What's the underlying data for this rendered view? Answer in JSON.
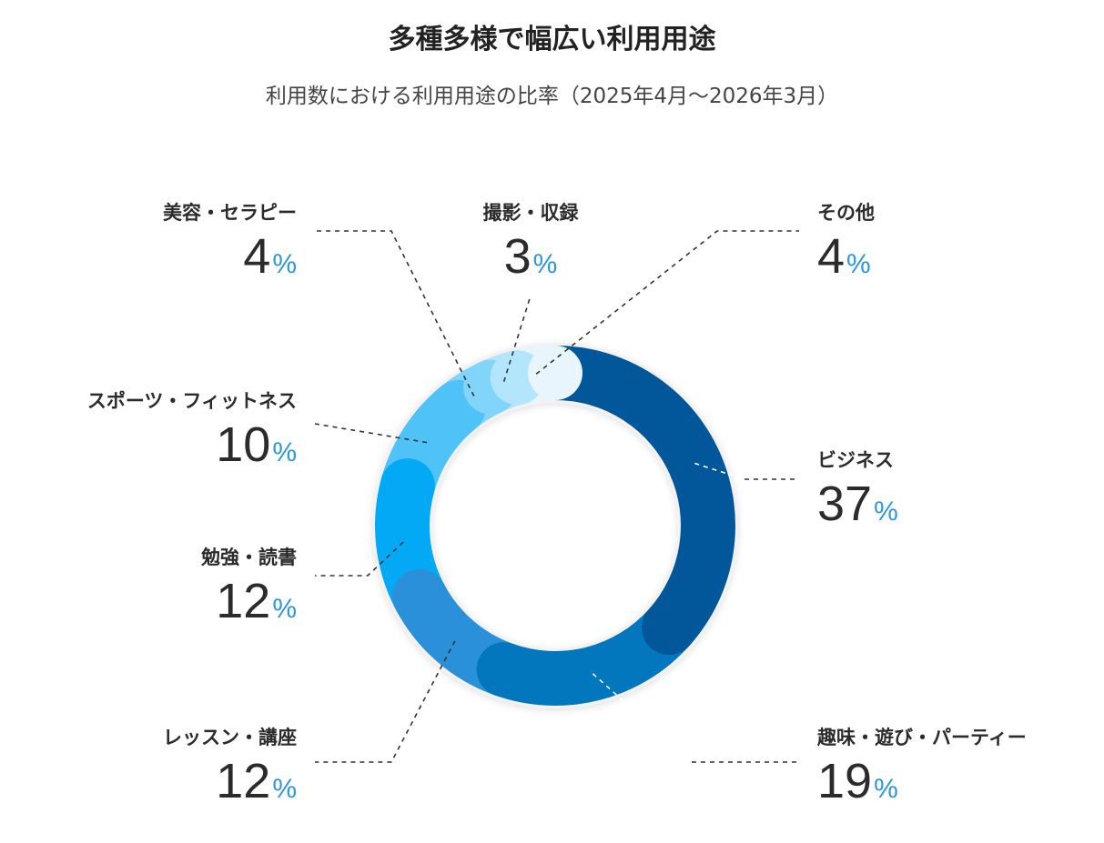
{
  "chart_data": {
    "type": "pie",
    "title": "多種多様で幅広い利用用途",
    "subtitle": "利用数における利用用途の比率（2025年4月〜2026年3月）",
    "unit": "%",
    "slices": [
      {
        "label": "ビジネス",
        "value": 37,
        "color": "#02579b"
      },
      {
        "label": "趣味・遊び・パーティー",
        "value": 19,
        "color": "#0277bd"
      },
      {
        "label": "レッスン・講座",
        "value": 12,
        "color": "#2a90d9"
      },
      {
        "label": "勉強・読書",
        "value": 12,
        "color": "#03a9f4"
      },
      {
        "label": "スポーツ・フィットネス",
        "value": 10,
        "color": "#4fc3f7"
      },
      {
        "label": "美容・セラピー",
        "value": 4,
        "color": "#81d4fa"
      },
      {
        "label": "撮影・収録",
        "value": 3,
        "color": "#b3e5fc"
      },
      {
        "label": "その他",
        "value": 4,
        "color": "#e9f5fd"
      }
    ]
  }
}
